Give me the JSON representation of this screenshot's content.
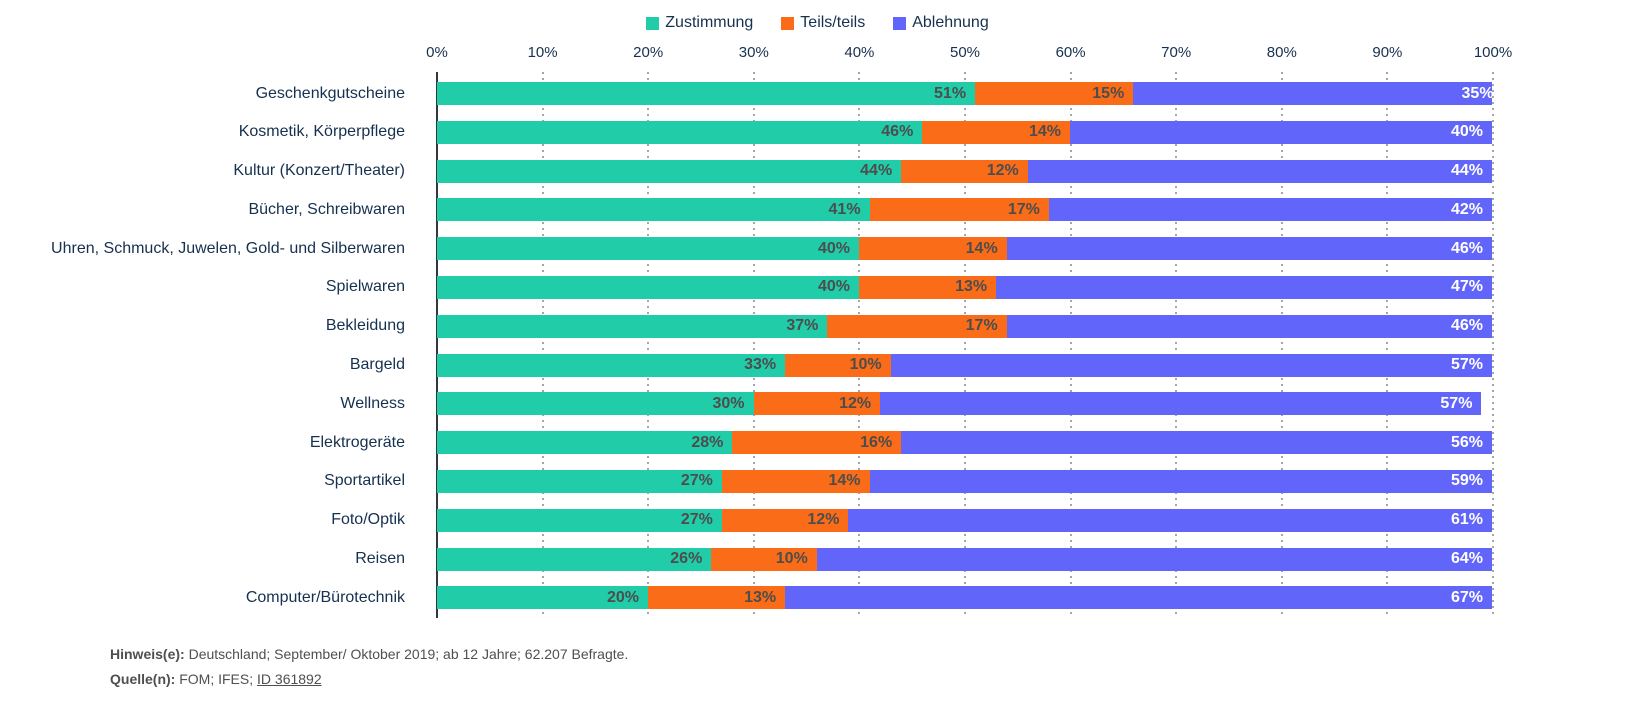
{
  "chart_data": {
    "type": "bar",
    "orientation": "horizontal-stacked",
    "title": "",
    "categories": [
      "Geschenkgutscheine",
      "Kosmetik, Körperpflege",
      "Kultur (Konzert/Theater)",
      "Bücher, Schreibwaren",
      "Uhren, Schmuck, Juwelen, Gold- und Silberwaren",
      "Spielwaren",
      "Bekleidung",
      "Bargeld",
      "Wellness",
      "Elektrogeräte",
      "Sportartikel",
      "Foto/Optik",
      "Reisen",
      "Computer/Bürotechnik"
    ],
    "series": [
      {
        "name": "Zustimmung",
        "color": "#21CCA8",
        "values": [
          51,
          46,
          44,
          41,
          40,
          40,
          37,
          33,
          30,
          28,
          27,
          27,
          26,
          20
        ]
      },
      {
        "name": "Teils/teils",
        "color": "#FA6C17",
        "values": [
          15,
          14,
          12,
          17,
          14,
          13,
          17,
          10,
          12,
          16,
          14,
          12,
          10,
          13
        ]
      },
      {
        "name": "Ablehnung",
        "color": "#6165FA",
        "values": [
          35,
          40,
          44,
          42,
          46,
          47,
          46,
          57,
          57,
          56,
          59,
          61,
          64,
          67
        ]
      }
    ],
    "x_ticks": [
      "0%",
      "10%",
      "20%",
      "30%",
      "40%",
      "50%",
      "60%",
      "70%",
      "80%",
      "90%",
      "100%"
    ],
    "xlim": [
      0,
      100
    ],
    "value_suffix": "%",
    "grid": "dotted-vertical",
    "legend_position": "top-center"
  },
  "footer": {
    "hinweis_label": "Hinweis(e):",
    "hinweis_text": "Deutschland; September/ Oktober 2019; ab 12 Jahre; 62.207 Befragte.",
    "quelle_label": "Quelle(n):",
    "quelle_prefix": "FOM; IFES; ",
    "source_link": "ID 361892"
  },
  "colors": {
    "text_navy": "#16304F",
    "value_label": "#4D4D4D",
    "value_label_on_blue": "#FFFFFF",
    "gridline": "#A6A6A6",
    "axis_line": "#32373D",
    "footer_text": "#4F4F4F"
  }
}
